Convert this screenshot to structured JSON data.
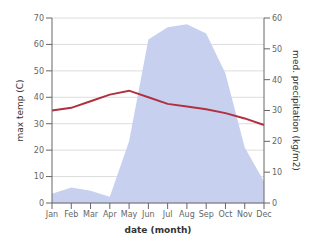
{
  "chart_data": {
    "type": "line",
    "categories": [
      "Jan",
      "Feb",
      "Mar",
      "Apr",
      "May",
      "Jun",
      "Jul",
      "Aug",
      "Sep",
      "Oct",
      "Nov",
      "Dec"
    ],
    "xlabel": "date (month)",
    "ylabel": "max temp (C)",
    "y2label": "med. precipitation (kg/m2)",
    "series": [
      {
        "type": "area",
        "axis": "y2",
        "color": "#c8d0f0",
        "values": [
          3,
          5,
          4,
          2,
          20,
          53,
          57,
          58,
          55,
          42,
          18,
          7
        ]
      },
      {
        "type": "line",
        "color": "#b03040",
        "values": [
          35.0,
          36.0,
          38.5,
          41.0,
          42.5,
          40.0,
          37.5,
          36.5,
          35.5,
          34.0,
          32.0,
          29.5
        ]
      }
    ],
    "ylim": [
      0,
      70
    ],
    "yticks": [
      0,
      10,
      20,
      30,
      40,
      50,
      60,
      70
    ],
    "y2lim": [
      0,
      60
    ],
    "y2ticks": [
      0,
      10,
      20,
      30,
      40,
      50,
      60
    ],
    "grid": true
  }
}
